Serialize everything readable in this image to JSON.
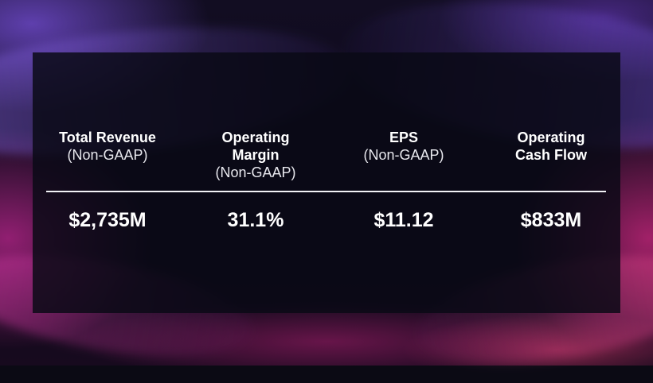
{
  "metrics": [
    {
      "name": "Total Revenue",
      "qualifier": "(Non-GAAP)",
      "value": "$2,735M"
    },
    {
      "name": "Operating\nMargin",
      "qualifier": "(Non-GAAP)",
      "value": "31.1%"
    },
    {
      "name": "EPS",
      "qualifier": "(Non-GAAP)",
      "value": "$11.12"
    },
    {
      "name": "Operating\nCash Flow",
      "qualifier": "",
      "value": "$833M"
    }
  ],
  "colors": {
    "panel": "#0a0a16",
    "text": "#ffffff",
    "accent_purple": "#7850dc",
    "accent_pink": "#d22882"
  }
}
